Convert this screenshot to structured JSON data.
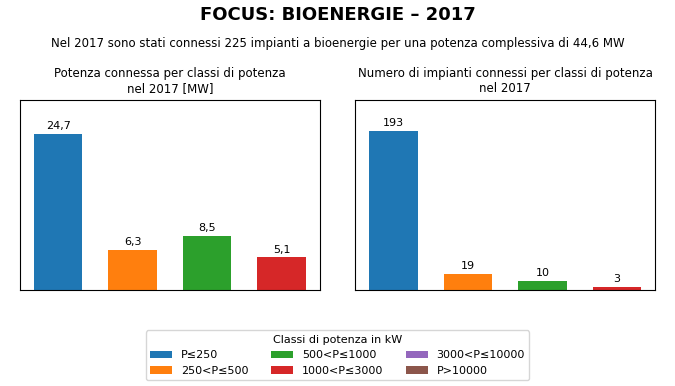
{
  "title": "FOCUS: BIOENERGIE – 2017",
  "subtitle": "Nel 2017 sono stati connessi 225 impianti a bioenergie per una potenza complessiva di 44,6 MW",
  "legend_title": "Classi di potenza in kW",
  "categories": [
    "P≤250",
    "250<P≤500",
    "500<P≤1000",
    "1000<P≤3000",
    "3000<P≤10000",
    "P>10000"
  ],
  "legend": "lower center",
  "chart_data": [
    {
      "type": "bar",
      "title": "Potenza connessa per classi di potenza\nnel 2017 [MW]",
      "categories": [
        "P≤250",
        "250<P≤500",
        "500<P≤1000",
        "1000<P≤3000"
      ],
      "values": [
        24.7,
        6.3,
        8.5,
        5.1
      ],
      "value_labels": [
        "24,7",
        "6,3",
        "8,5",
        "5,1"
      ],
      "data_labels": true,
      "ylim": [
        0,
        30
      ],
      "yticks": [],
      "tick_labels": false
    },
    {
      "type": "bar",
      "title": "Numero di impianti connessi per classi di potenza\nnel 2017",
      "categories": [
        "P≤250",
        "250<P≤500",
        "500<P≤1000",
        "1000<P≤3000"
      ],
      "values": [
        193,
        19,
        10,
        3
      ],
      "data_labels": true,
      "ylim": [
        0,
        230
      ],
      "yticks": [],
      "tick_labels": false
    }
  ]
}
